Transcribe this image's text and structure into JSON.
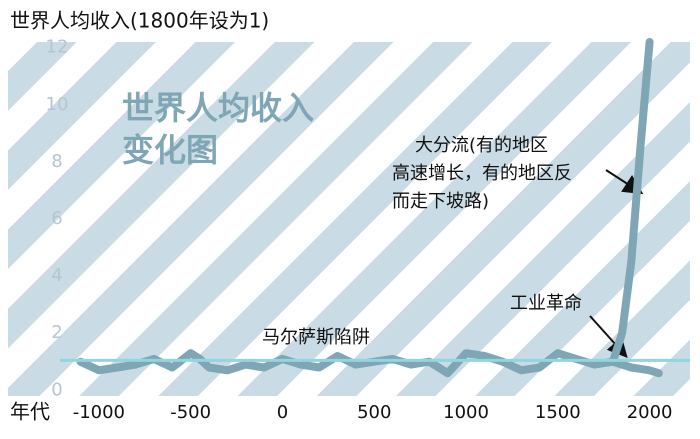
{
  "chart_data": {
    "type": "line",
    "title": "世界人均收入(1800年设为1)",
    "x_label": "年代",
    "big_label": [
      "世界人均收入",
      "变化图"
    ],
    "annotations": {
      "divergence": [
        "大分流(有的地区",
        "高速增长，有的地区反",
        "而走下坡路)"
      ],
      "industrial": "工业革命",
      "malthus": "马尔萨斯陷阱"
    },
    "reference_line": {
      "value": 1.05,
      "color": "#8fd6e0"
    },
    "xlim": [
      -1495,
      2220
    ],
    "ylim": [
      -0.2,
      12.2
    ],
    "xticks": [
      -1000,
      -500,
      0,
      500,
      1000,
      1500,
      2000
    ],
    "yticks": [
      0,
      2,
      4,
      6,
      8,
      10,
      12
    ],
    "series": [
      {
        "color": "#7fa6b5",
        "x": [
          -1100,
          -1000,
          -900,
          -800,
          -700,
          -600,
          -500,
          -450,
          -400,
          -300,
          -200,
          -100,
          0,
          100,
          200,
          300,
          400,
          500,
          600,
          700,
          800,
          900,
          1000,
          1100,
          1200,
          1300,
          1400,
          1500,
          1600,
          1700,
          1800
        ],
        "values": [
          1.0,
          0.7,
          0.8,
          0.9,
          1.1,
          0.8,
          1.3,
          1.1,
          0.8,
          0.7,
          0.9,
          0.8,
          1.1,
          0.9,
          0.8,
          1.2,
          0.9,
          1.0,
          1.1,
          0.9,
          1.0,
          0.6,
          1.3,
          1.2,
          1.0,
          0.7,
          0.8,
          1.3,
          1.1,
          0.9,
          1.0
        ]
      },
      {
        "color": "#7fa6b5",
        "x": [
          1800,
          1850,
          1900,
          1950,
          2000
        ],
        "values": [
          1.0,
          2.0,
          4.5,
          8.5,
          12.2
        ]
      },
      {
        "color": "#7fa6b5",
        "x": [
          1800,
          1900,
          2000,
          2050
        ],
        "values": [
          1.0,
          0.8,
          0.7,
          0.6
        ]
      }
    ]
  }
}
